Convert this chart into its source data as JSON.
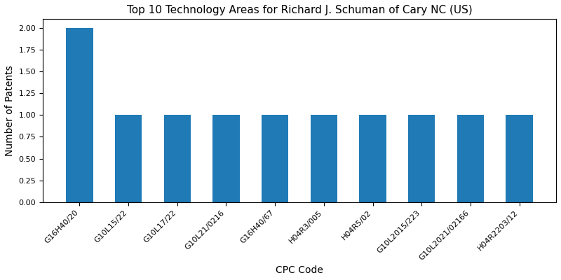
{
  "title": "Top 10 Technology Areas for Richard J. Schuman of Cary NC (US)",
  "xlabel": "CPC Code",
  "ylabel": "Number of Patents",
  "categories": [
    "G16H40/20",
    "G10L15/22",
    "G10L17/22",
    "G10L21/0216",
    "G16H40/67",
    "H04R3/005",
    "H04R5/02",
    "G10L2015/223",
    "G10L2021/02166",
    "H04R2203/12"
  ],
  "values": [
    2,
    1,
    1,
    1,
    1,
    1,
    1,
    1,
    1,
    1
  ],
  "bar_color": "#1f7ab5",
  "ylim": [
    0,
    2.1
  ],
  "yticks": [
    0.0,
    0.25,
    0.5,
    0.75,
    1.0,
    1.25,
    1.5,
    1.75,
    2.0
  ],
  "title_fontsize": 11,
  "label_fontsize": 10,
  "tick_fontsize": 8,
  "bar_width": 0.55,
  "figsize": [
    8.0,
    4.0
  ],
  "dpi": 100
}
